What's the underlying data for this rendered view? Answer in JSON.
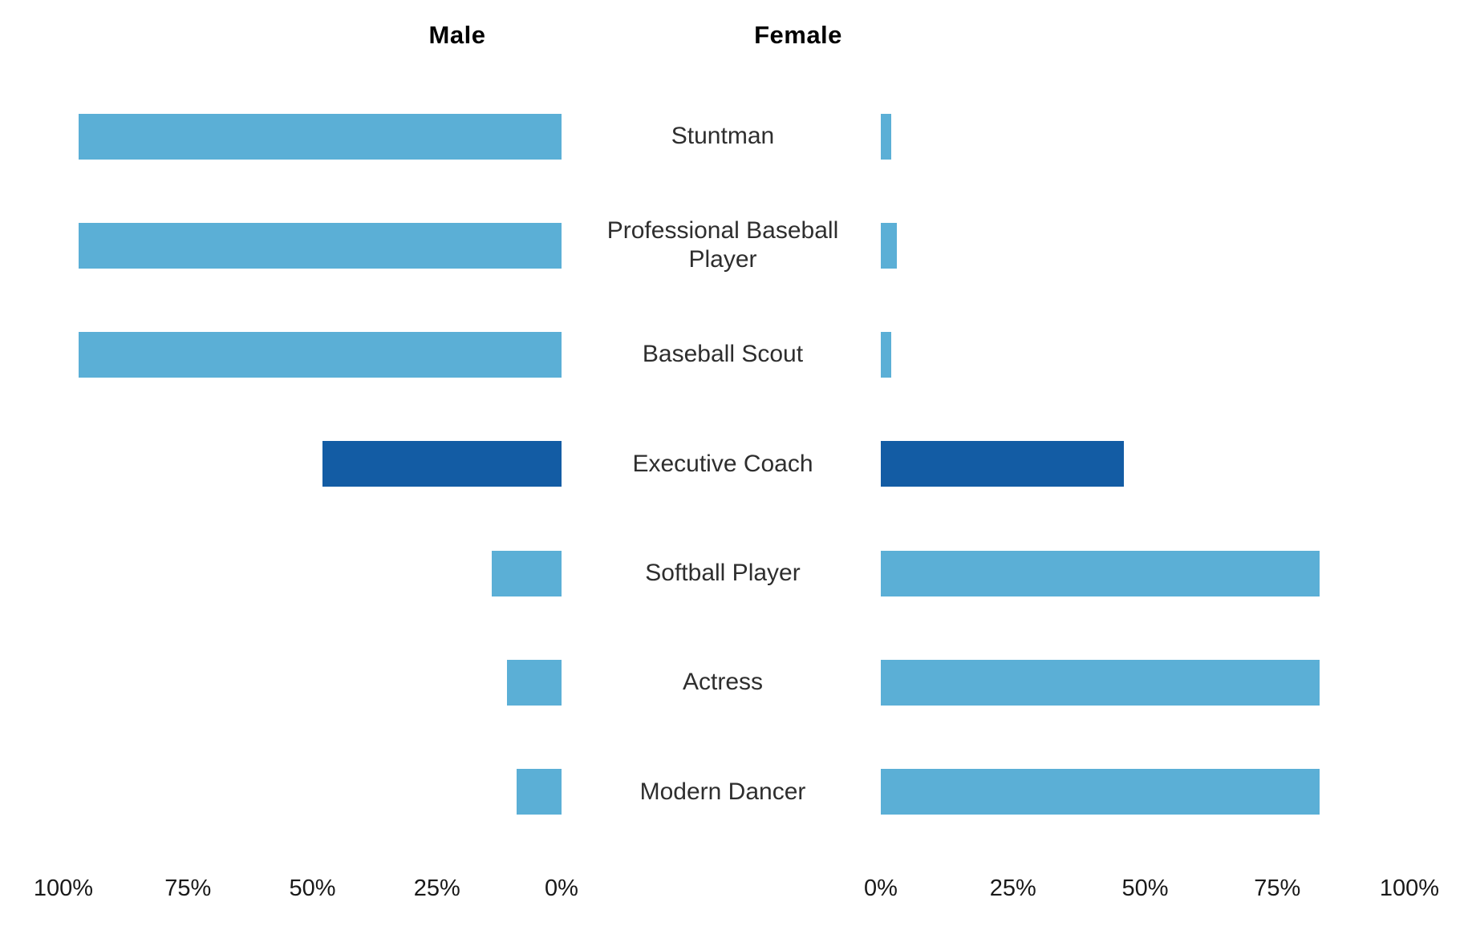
{
  "headers": {
    "male": "Male",
    "female": "Female"
  },
  "chart_data": {
    "type": "bar",
    "variant": "diverging-butterfly",
    "categories": [
      "Stuntman",
      "Professional Baseball Player",
      "Baseball Scout",
      "Executive Coach",
      "Softball Player",
      "Actress",
      "Modern Dancer"
    ],
    "series": [
      {
        "name": "Male",
        "values": [
          97,
          97,
          97,
          48,
          14,
          11,
          9
        ]
      },
      {
        "name": "Female",
        "values": [
          2,
          3,
          2,
          46,
          83,
          83,
          83
        ]
      }
    ],
    "unit": "%",
    "left_axis_ticks": [
      "100%",
      "75%",
      "50%",
      "25%",
      "0%"
    ],
    "right_axis_ticks": [
      "0%",
      "25%",
      "50%",
      "75%",
      "100%"
    ],
    "xlim_each_side": [
      0,
      100
    ],
    "highlight_category": "Executive Coach",
    "highlight_index": 3,
    "legend_position": "top-as-headers",
    "grid": false,
    "colors": {
      "bar": "#5BAFD6",
      "bar_highlight": "#135CA4",
      "category_text": "#2E2E2E",
      "axis_text": "#191919",
      "header_text": "#000000",
      "background": "#FFFFFF"
    }
  }
}
